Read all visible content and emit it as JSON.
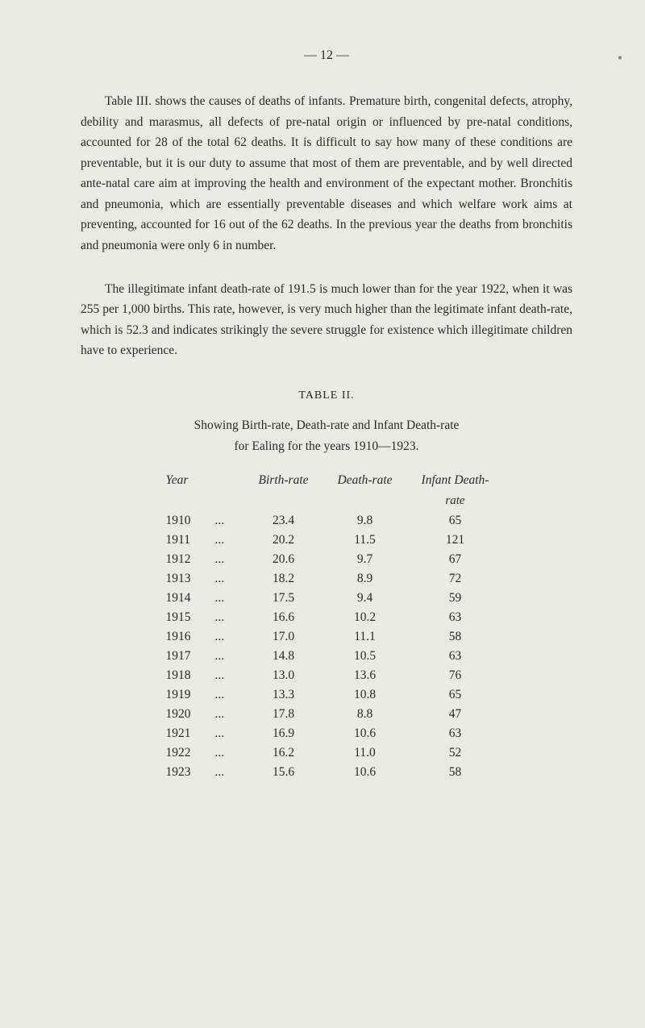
{
  "page_number": "— 12 —",
  "dot": "•",
  "paragraph1": "Table III. shows the causes of deaths of infants. Premature birth, congenital defects, atrophy, debility and marasmus, all defects of pre-natal origin or influenced by pre-natal conditions, accounted for 28 of the total 62 deaths. It is difficult to say how many of these conditions are preventable, but it is our duty to assume that most of them are preventable, and by well directed ante-natal care aim at improving the health and environment of the expectant mother. Bronchitis and pneumonia, which are essentially preventable diseases and which welfare work aims at preventing, accounted for 16 out of the 62 deaths. In the previous year the deaths from bronchitis and pneumonia were only 6 in number.",
  "paragraph2": "The illegitimate infant death-rate of 191.5 is much lower than for the year 1922, when it was 255 per 1,000 births. This rate, however, is very much higher than the legitimate infant death-rate, which is 52.3 and indicates strikingly the severe struggle for existence which illegitimate children have to experience.",
  "table": {
    "label": "TABLE II.",
    "caption": "Showing Birth-rate, Death-rate and Infant Death-rate",
    "subcaption": "for Ealing for the years 1910—1923.",
    "headers": {
      "year": "Year",
      "birth_rate": "Birth-rate",
      "death_rate": "Death-rate",
      "infant_death_rate": "Infant Death-",
      "infant_death_rate_sub": "rate"
    },
    "rows": [
      {
        "year": "1910",
        "dots": "...",
        "birth": "23.4",
        "death": "9.8",
        "infant": "65"
      },
      {
        "year": "1911",
        "dots": "...",
        "birth": "20.2",
        "death": "11.5",
        "infant": "121"
      },
      {
        "year": "1912",
        "dots": "...",
        "birth": "20.6",
        "death": "9.7",
        "infant": "67"
      },
      {
        "year": "1913",
        "dots": "...",
        "birth": "18.2",
        "death": "8.9",
        "infant": "72"
      },
      {
        "year": "1914",
        "dots": "...",
        "birth": "17.5",
        "death": "9.4",
        "infant": "59"
      },
      {
        "year": "1915",
        "dots": "...",
        "birth": "16.6",
        "death": "10.2",
        "infant": "63"
      },
      {
        "year": "1916",
        "dots": "...",
        "birth": "17.0",
        "death": "11.1",
        "infant": "58"
      },
      {
        "year": "1917",
        "dots": "...",
        "birth": "14.8",
        "death": "10.5",
        "infant": "63"
      },
      {
        "year": "1918",
        "dots": "...",
        "birth": "13.0",
        "death": "13.6",
        "infant": "76"
      },
      {
        "year": "1919",
        "dots": "...",
        "birth": "13.3",
        "death": "10.8",
        "infant": "65"
      },
      {
        "year": "1920",
        "dots": "...",
        "birth": "17.8",
        "death": "8.8",
        "infant": "47"
      },
      {
        "year": "1921",
        "dots": "...",
        "birth": "16.9",
        "death": "10.6",
        "infant": "63"
      },
      {
        "year": "1922",
        "dots": "...",
        "birth": "16.2",
        "death": "11.0",
        "infant": "52"
      },
      {
        "year": "1923",
        "dots": "...",
        "birth": "15.6",
        "death": "10.6",
        "infant": "58"
      }
    ]
  },
  "styling": {
    "background_color": "#ebebe3",
    "text_color": "#2a2a2a",
    "font_family": "Georgia, serif",
    "body_font_size": 15.5,
    "line_height": 1.65
  }
}
